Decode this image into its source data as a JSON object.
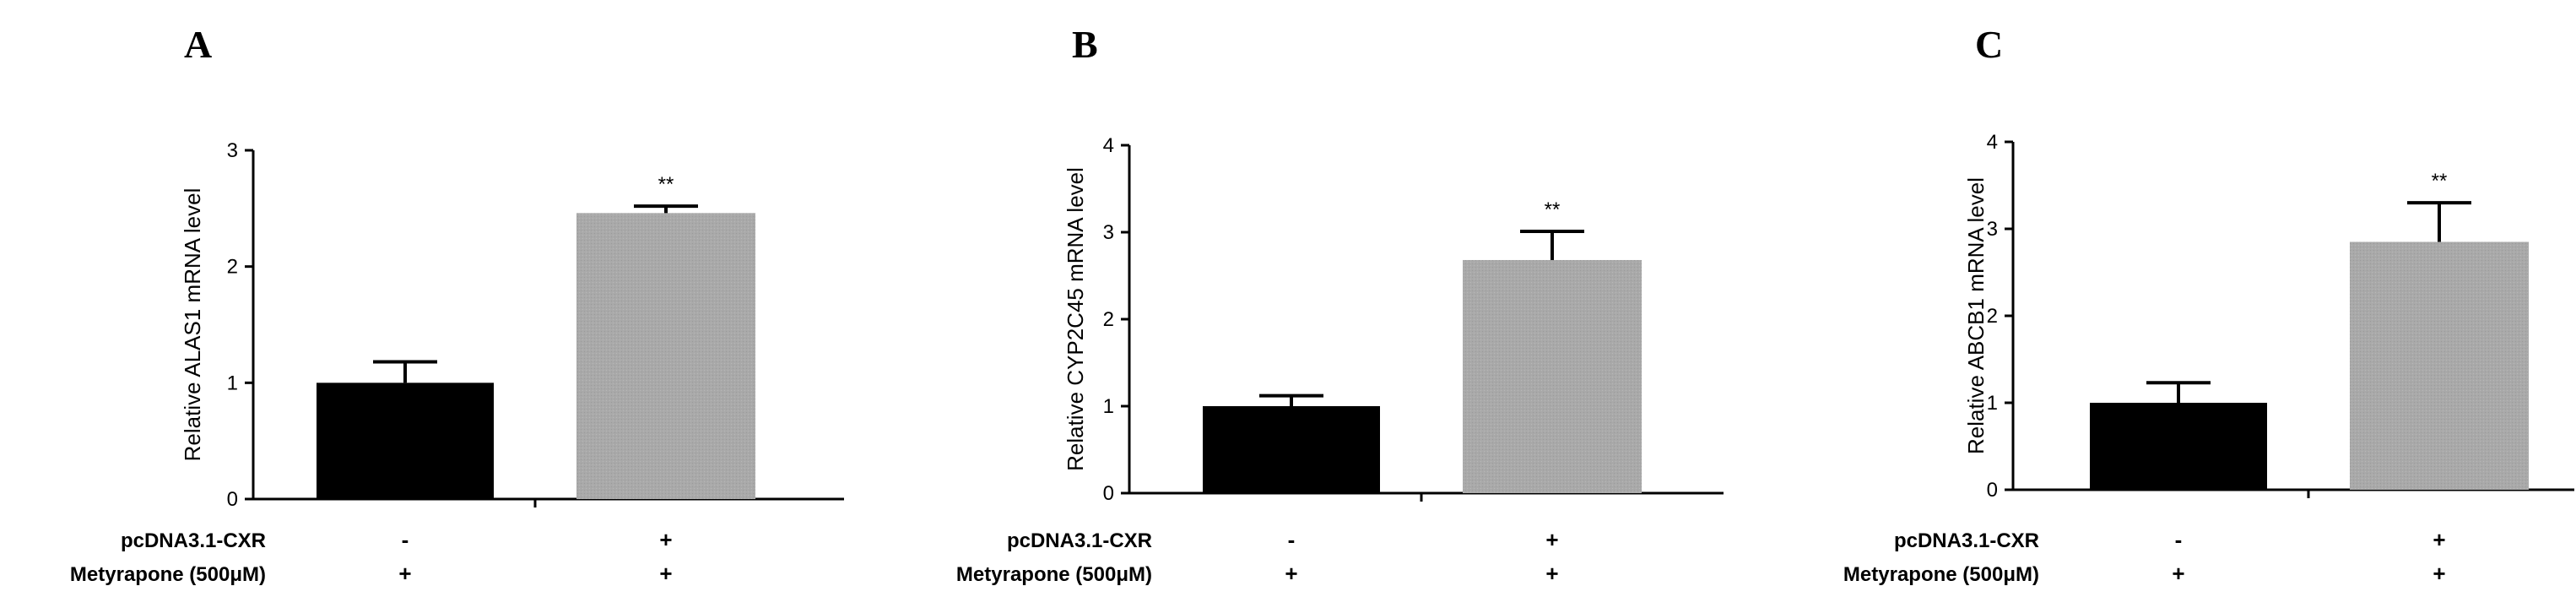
{
  "colors": {
    "control_bar": "#000000",
    "treatment_bar": "#a9a9a9",
    "axis": "#000000"
  },
  "conditions": {
    "row1_label": "pcDNA3.1-CXR",
    "row2_label": "Metyrapone (500μM)"
  },
  "chart_data": [
    {
      "type": "bar",
      "panel": "A",
      "ylabel": "Relative ALAS1 mRNA level",
      "ylim": [
        0,
        3
      ],
      "yticks": [
        "0",
        "1",
        "2",
        "3"
      ],
      "groups": [
        {
          "pcdna": "-",
          "metyrapone": "+",
          "value": 1.0,
          "error": 0.18,
          "sig": ""
        },
        {
          "pcdna": "+",
          "metyrapone": "+",
          "value": 2.46,
          "error": 0.06,
          "sig": "**"
        }
      ]
    },
    {
      "type": "bar",
      "panel": "B",
      "ylabel": "Relative CYP2C45 mRNA level",
      "ylim": [
        0,
        4
      ],
      "yticks": [
        "0",
        "1",
        "2",
        "3",
        "4"
      ],
      "groups": [
        {
          "pcdna": "-",
          "metyrapone": "+",
          "value": 1.0,
          "error": 0.12,
          "sig": ""
        },
        {
          "pcdna": "+",
          "metyrapone": "+",
          "value": 2.68,
          "error": 0.33,
          "sig": "**"
        }
      ]
    },
    {
      "type": "bar",
      "panel": "C",
      "ylabel": "Relative ABCB1 mRNA level",
      "ylim": [
        0,
        4
      ],
      "yticks": [
        "0",
        "1",
        "2",
        "3",
        "4"
      ],
      "groups": [
        {
          "pcdna": "-",
          "metyrapone": "+",
          "value": 1.0,
          "error": 0.23,
          "sig": ""
        },
        {
          "pcdna": "+",
          "metyrapone": "+",
          "value": 2.85,
          "error": 0.45,
          "sig": "**"
        }
      ]
    }
  ]
}
